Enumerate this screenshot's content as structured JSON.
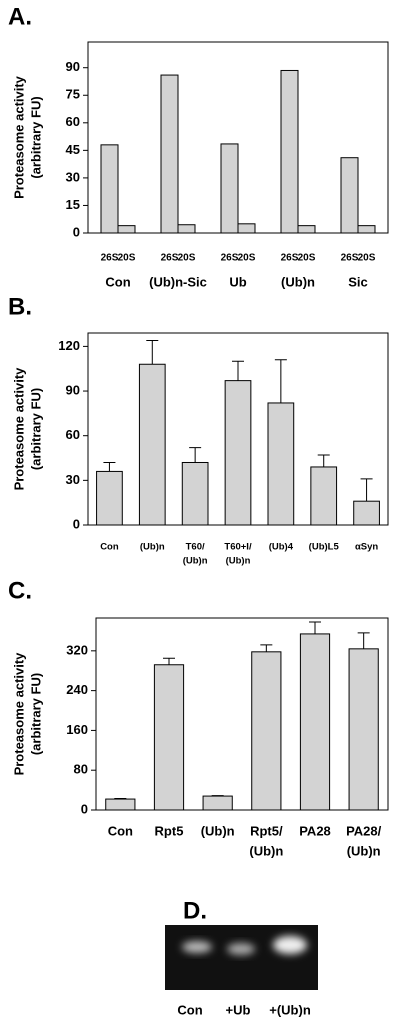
{
  "chart_data": [
    {
      "type": "bar",
      "title": "A.",
      "y_label": [
        "Proteasome activity",
        "(arbitrary FU)"
      ],
      "categories": [
        "Con",
        "(Ub)n-Sic",
        "Ub",
        "(Ub)n",
        "Sic"
      ],
      "series": [
        {
          "name": "26S",
          "color": "#d3d3d3",
          "values": [
            48,
            86,
            48.5,
            88.5,
            41
          ]
        },
        {
          "name": "20S",
          "color": "#d3d3d3",
          "values": [
            4,
            4.5,
            5,
            4,
            4
          ]
        }
      ],
      "ylim": [
        0,
        104
      ],
      "yticks": [
        0,
        15,
        30,
        45,
        60,
        75,
        90
      ]
    },
    {
      "type": "bar",
      "title": "B.",
      "y_label": [
        "Proteasome activity",
        "(arbitrary FU)"
      ],
      "categories": [
        [
          "Con"
        ],
        [
          "(Ub)n"
        ],
        [
          "T60/",
          "(Ub)n"
        ],
        [
          "T60+I/",
          "(Ub)n"
        ],
        [
          "(Ub)4"
        ],
        [
          "(Ub)L5"
        ],
        [
          "αSyn"
        ]
      ],
      "values": [
        36,
        108,
        42,
        97,
        82,
        39,
        16
      ],
      "errors": [
        6,
        16,
        10,
        13,
        29,
        8,
        15
      ],
      "color": "#d3d3d3",
      "ylim": [
        0,
        129
      ],
      "yticks": [
        0,
        30,
        60,
        90,
        120
      ]
    },
    {
      "type": "bar",
      "title": "C.",
      "y_label": [
        "Proteasome activity",
        "(arbitrary FU)"
      ],
      "categories": [
        [
          "Con"
        ],
        [
          "Rpt5"
        ],
        [
          "(Ub)n"
        ],
        [
          "Rpt5/",
          "(Ub)n"
        ],
        [
          "PA28"
        ],
        [
          "PA28/",
          "(Ub)n"
        ]
      ],
      "values": [
        22,
        292,
        28,
        318,
        354,
        324
      ],
      "errors": [
        1,
        13,
        1,
        14,
        24,
        32
      ],
      "color": "#d3d3d3",
      "ylim": [
        0,
        386
      ],
      "yticks": [
        0,
        80,
        160,
        240,
        320
      ]
    }
  ],
  "panel_d": {
    "label": "D.",
    "lanes": [
      "Con",
      "+Ub",
      "+(Ub)n"
    ]
  }
}
